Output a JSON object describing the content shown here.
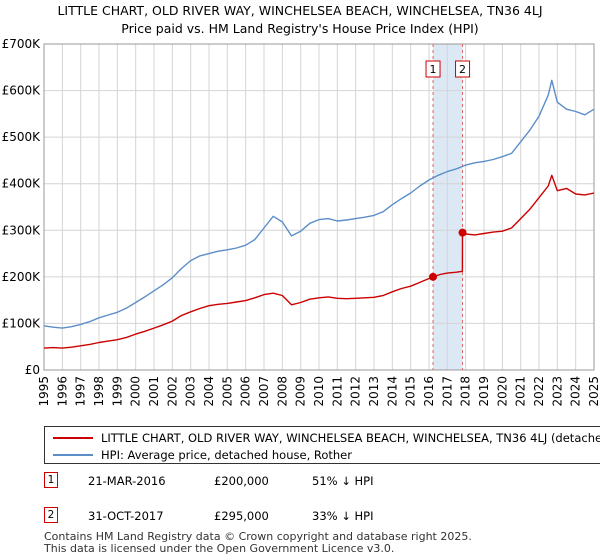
{
  "title": {
    "line1": "LITTLE CHART, OLD RIVER WAY, WINCHELSEA BEACH, WINCHELSEA, TN36 4LJ",
    "line2": "Price paid vs. HM Land Registry's House Price Index (HPI)"
  },
  "colors": {
    "property": "#cc0000",
    "hpi": "#5b8ec9",
    "shade": "#dde8f5",
    "grid": "#d4d4d4"
  },
  "chart_data": {
    "type": "line",
    "title": "Price paid vs. HM Land Registry's House Price Index (HPI)",
    "xlabel": "",
    "ylabel": "",
    "xlim": [
      1995,
      2025
    ],
    "ylim": [
      0,
      700000
    ],
    "y_ticks": [
      {
        "value": 0,
        "label": "£0"
      },
      {
        "value": 100000,
        "label": "£100K"
      },
      {
        "value": 200000,
        "label": "£200K"
      },
      {
        "value": 300000,
        "label": "£300K"
      },
      {
        "value": 400000,
        "label": "£400K"
      },
      {
        "value": 500000,
        "label": "£500K"
      },
      {
        "value": 600000,
        "label": "£600K"
      },
      {
        "value": 700000,
        "label": "£700K"
      }
    ],
    "x_ticks": [
      "1995",
      "1996",
      "1997",
      "1998",
      "1999",
      "2000",
      "2001",
      "2002",
      "2003",
      "2004",
      "2005",
      "2006",
      "2007",
      "2008",
      "2009",
      "2010",
      "2011",
      "2012",
      "2013",
      "2014",
      "2015",
      "2016",
      "2017",
      "2018",
      "2019",
      "2020",
      "2021",
      "2022",
      "2023",
      "2024",
      "2025"
    ],
    "x_tick_values": [
      1995,
      1996,
      1997,
      1998,
      1999,
      2000,
      2001,
      2002,
      2003,
      2004,
      2005,
      2006,
      2007,
      2008,
      2009,
      2010,
      2011,
      2012,
      2013,
      2014,
      2015,
      2016,
      2017,
      2018,
      2019,
      2020,
      2021,
      2022,
      2023,
      2024,
      2025
    ],
    "series": [
      {
        "name": "LITTLE CHART, OLD RIVER WAY, WINCHELSEA BEACH, WINCHELSEA, TN36 4LJ (detached house)",
        "x": [
          1995,
          1995.5,
          1996,
          1996.5,
          1997,
          1997.5,
          1998,
          1998.5,
          1999,
          1999.5,
          2000,
          2000.5,
          2001,
          2001.5,
          2002,
          2002.5,
          2003,
          2003.5,
          2004,
          2004.5,
          2005,
          2005.5,
          2006,
          2006.5,
          2007,
          2007.5,
          2008,
          2008.5,
          2009,
          2009.5,
          2010,
          2010.5,
          2011,
          2011.5,
          2012,
          2012.5,
          2013,
          2013.5,
          2014,
          2014.5,
          2015,
          2015.5,
          2016.22,
          2016.6,
          2017,
          2017.5,
          2017.82,
          2017.83,
          2018,
          2018.5,
          2019,
          2019.5,
          2020,
          2020.5,
          2021,
          2021.5,
          2022,
          2022.5,
          2022.7,
          2023,
          2023.5,
          2024,
          2024.5,
          2025
        ],
        "values": [
          47000,
          48000,
          47000,
          49000,
          52000,
          55000,
          59000,
          62000,
          65000,
          70000,
          77000,
          83000,
          90000,
          97000,
          105000,
          117000,
          125000,
          132000,
          138000,
          141000,
          143000,
          146000,
          149000,
          155000,
          162000,
          165000,
          160000,
          140000,
          145000,
          152000,
          155000,
          157000,
          154000,
          153000,
          154000,
          155000,
          156000,
          160000,
          168000,
          175000,
          180000,
          188000,
          200000,
          205000,
          208000,
          210000,
          212000,
          295000,
          292000,
          290000,
          293000,
          296000,
          298000,
          305000,
          325000,
          345000,
          370000,
          395000,
          418000,
          385000,
          390000,
          378000,
          376000,
          380000
        ]
      },
      {
        "name": "HPI: Average price, detached house, Rother",
        "x": [
          1995,
          1995.5,
          1996,
          1996.5,
          1997,
          1997.5,
          1998,
          1998.5,
          1999,
          1999.5,
          2000,
          2000.5,
          2001,
          2001.5,
          2002,
          2002.5,
          2003,
          2003.5,
          2004,
          2004.5,
          2005,
          2005.5,
          2006,
          2006.5,
          2007,
          2007.5,
          2008,
          2008.5,
          2009,
          2009.5,
          2010,
          2010.5,
          2011,
          2011.5,
          2012,
          2012.5,
          2013,
          2013.5,
          2014,
          2014.5,
          2015,
          2015.5,
          2016,
          2016.5,
          2017,
          2017.5,
          2018,
          2018.5,
          2019,
          2019.5,
          2020,
          2020.5,
          2021,
          2021.5,
          2022,
          2022.5,
          2022.7,
          2023,
          2023.5,
          2024,
          2024.5,
          2025
        ],
        "values": [
          95000,
          92000,
          90000,
          93000,
          98000,
          104000,
          112000,
          118000,
          124000,
          133000,
          145000,
          157000,
          170000,
          183000,
          198000,
          218000,
          235000,
          245000,
          250000,
          255000,
          258000,
          262000,
          268000,
          280000,
          305000,
          330000,
          318000,
          288000,
          298000,
          315000,
          323000,
          325000,
          320000,
          322000,
          325000,
          328000,
          332000,
          340000,
          355000,
          368000,
          380000,
          395000,
          408000,
          418000,
          426000,
          432000,
          440000,
          445000,
          448000,
          452000,
          458000,
          465000,
          490000,
          515000,
          545000,
          590000,
          622000,
          575000,
          560000,
          555000,
          548000,
          560000
        ]
      }
    ],
    "sales": [
      {
        "id": "1",
        "x": 2016.22,
        "value": 200000
      },
      {
        "id": "2",
        "x": 2017.83,
        "value": 295000
      }
    ],
    "shaded_region": [
      2016.22,
      2017.83
    ]
  },
  "legend": {
    "property_label": "LITTLE CHART, OLD RIVER WAY, WINCHELSEA BEACH, WINCHELSEA, TN36 4LJ (detached house)",
    "hpi_label": "HPI: Average price, detached house, Rother"
  },
  "sales_table": [
    {
      "id": "1",
      "date": "21-MAR-2016",
      "price": "£200,000",
      "hpi": "51% ↓ HPI"
    },
    {
      "id": "2",
      "date": "31-OCT-2017",
      "price": "£295,000",
      "hpi": "33% ↓ HPI"
    }
  ],
  "footer": {
    "line1": "Contains HM Land Registry data © Crown copyright and database right 2025.",
    "line2": "This data is licensed under the Open Government Licence v3.0."
  }
}
